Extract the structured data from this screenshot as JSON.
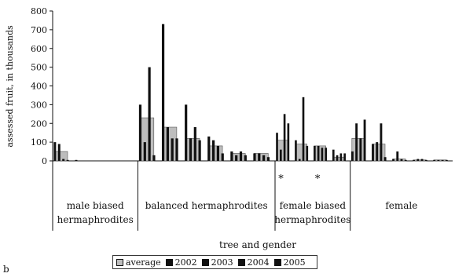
{
  "chart_data": {
    "type": "bar",
    "ylabel": "assessed fruit, in thousands",
    "xlabel": "tree and gender",
    "ylim": [
      0,
      800
    ],
    "yticks": [
      "0",
      "100",
      "200",
      "300",
      "400",
      "500",
      "600",
      "700",
      "800"
    ],
    "legend_position": "bottom",
    "series": [
      {
        "name": "average",
        "color": "#bdbdbd"
      },
      {
        "name": "2002",
        "color": "#111111"
      },
      {
        "name": "2003",
        "color": "#111111"
      },
      {
        "name": "2004",
        "color": "#111111"
      },
      {
        "name": "2005",
        "color": "#111111"
      }
    ],
    "groups": [
      {
        "label": "male biased\nhermaphrodites",
        "trees": [
          {
            "average": 50,
            "years": [
              100,
              90,
              10,
              5
            ]
          },
          {
            "average": 0,
            "years": [
              5,
              0,
              0,
              0
            ]
          },
          {
            "average": 0,
            "years": [
              0,
              0,
              0,
              0
            ]
          },
          {
            "average": 0,
            "years": [
              0,
              0,
              0,
              0
            ]
          }
        ]
      },
      {
        "label": "balanced hermaphrodites",
        "trees": [
          {
            "average": 230,
            "years": [
              300,
              100,
              500,
              30
            ]
          },
          {
            "average": 180,
            "years": [
              730,
              180,
              120,
              120
            ]
          },
          {
            "average": 120,
            "years": [
              300,
              120,
              180,
              110
            ]
          },
          {
            "average": 80,
            "years": [
              130,
              110,
              80,
              40
            ]
          },
          {
            "average": 40,
            "years": [
              50,
              30,
              50,
              30
            ]
          },
          {
            "average": 40,
            "years": [
              40,
              40,
              30,
              20
            ]
          }
        ]
      },
      {
        "label": "female biased\nhermaphrodites",
        "annotation": "* *",
        "trees": [
          {
            "average": 110,
            "years": [
              150,
              60,
              250,
              200
            ]
          },
          {
            "average": 90,
            "years": [
              110,
              10,
              340,
              80
            ]
          },
          {
            "average": 80,
            "years": [
              80,
              80,
              70,
              70
            ]
          },
          {
            "average": 20,
            "years": [
              60,
              30,
              40,
              40
            ]
          }
        ]
      },
      {
        "label": "female",
        "trees": [
          {
            "average": 120,
            "years": [
              50,
              200,
              120,
              220
            ]
          },
          {
            "average": 90,
            "years": [
              90,
              100,
              200,
              20
            ]
          },
          {
            "average": 10,
            "years": [
              10,
              50,
              10,
              5
            ]
          },
          {
            "average": 5,
            "years": [
              5,
              10,
              10,
              5
            ]
          },
          {
            "average": 5,
            "years": [
              5,
              5,
              5,
              5
            ]
          }
        ]
      }
    ]
  },
  "corner_label": "b"
}
